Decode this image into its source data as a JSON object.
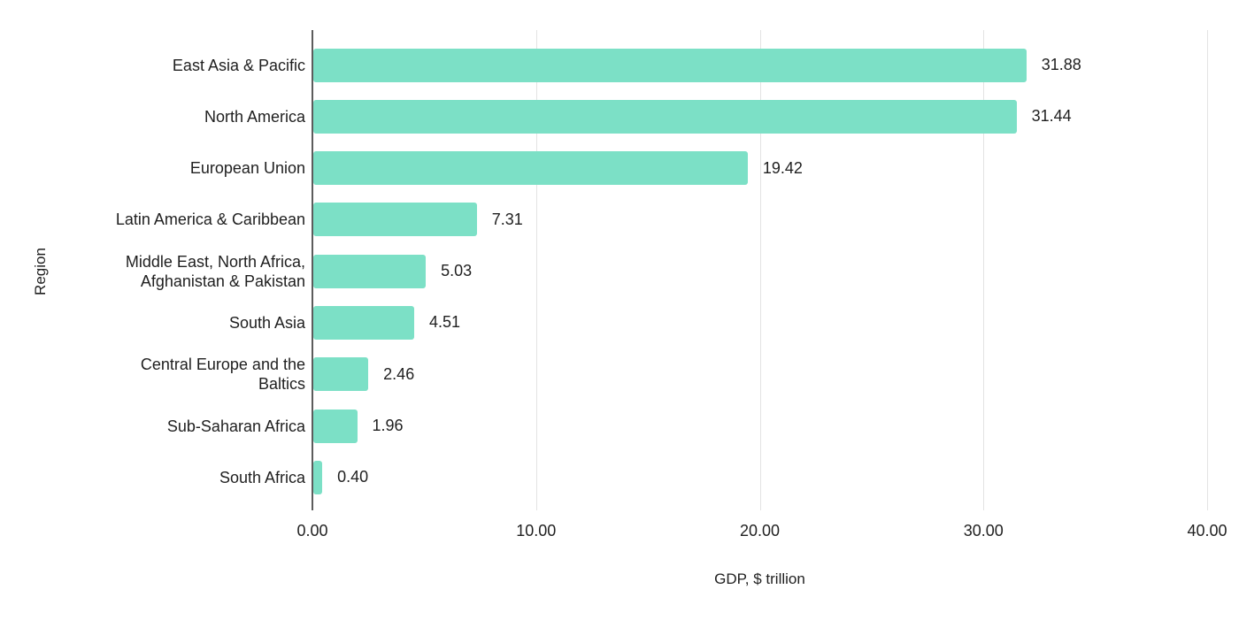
{
  "chart_data": {
    "type": "bar",
    "orientation": "horizontal",
    "title": "",
    "categories": [
      "East Asia & Pacific",
      "North America",
      "European Union",
      "Latin America & Caribbean",
      "Middle East, North Africa, Afghanistan & Pakistan",
      "South Asia",
      "Central Europe and the Baltics",
      "Sub-Saharan Africa",
      "South Africa"
    ],
    "values": [
      31.88,
      31.44,
      19.42,
      7.31,
      5.03,
      4.51,
      2.46,
      1.96,
      0.4
    ],
    "value_labels": [
      "31.88",
      "31.44",
      "19.42",
      "7.31",
      "5.03",
      "4.51",
      "2.46",
      "1.96",
      "0.40"
    ],
    "xlabel": "GDP, $ trillion",
    "ylabel": "Region",
    "xlim": [
      0,
      40
    ],
    "xticks": [
      0,
      10,
      20,
      30,
      40
    ],
    "xtick_labels": [
      "0.00",
      "10.00",
      "20.00",
      "30.00",
      "40.00"
    ],
    "grid": true,
    "legend": "none",
    "colors": {
      "bar": "#7ce0c6",
      "gridline": "#e3e3e3",
      "axis_line": "#5c5c5c",
      "text": "#1f1f1f",
      "background": "#ffffff"
    }
  }
}
